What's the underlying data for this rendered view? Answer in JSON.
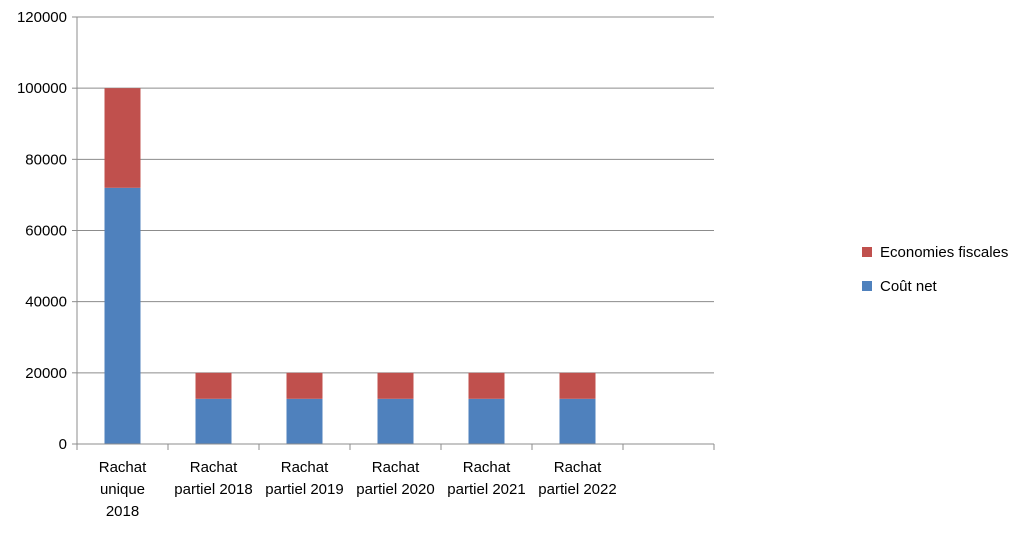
{
  "chart_data": {
    "type": "bar",
    "stacked": true,
    "categories": [
      [
        "Rachat",
        "unique",
        "2018"
      ],
      [
        "Rachat",
        "partiel 2018"
      ],
      [
        "Rachat",
        "partiel 2019"
      ],
      [
        "Rachat",
        "partiel 2020"
      ],
      [
        "Rachat",
        "partiel 2021"
      ],
      [
        "Rachat",
        "partiel 2022"
      ],
      [
        ""
      ]
    ],
    "series": [
      {
        "name": "Coût net",
        "color": "#4f81bd",
        "values": [
          72000,
          12700,
          12700,
          12700,
          12700,
          12700,
          0
        ]
      },
      {
        "name": "Economies fiscales",
        "color": "#c0504d",
        "values": [
          28000,
          7300,
          7300,
          7300,
          7300,
          7300,
          0
        ]
      }
    ],
    "ylim": [
      0,
      120000
    ],
    "yticks": [
      0,
      20000,
      40000,
      60000,
      80000,
      100000,
      120000
    ],
    "grid": true,
    "legend_position": "right",
    "legend_order": [
      "Economies fiscales",
      "Coût net"
    ]
  }
}
